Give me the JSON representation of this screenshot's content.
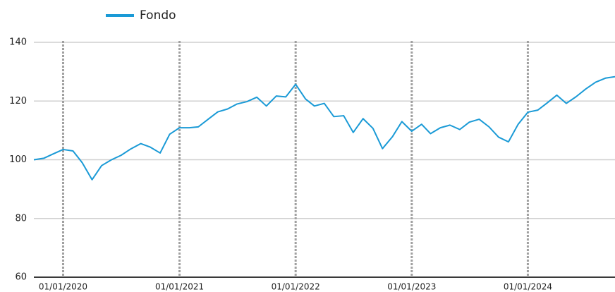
{
  "chart_data": {
    "type": "line",
    "x": [
      "2019-10-01",
      "2019-11-01",
      "2019-12-01",
      "2020-01-01",
      "2020-02-01",
      "2020-03-01",
      "2020-04-01",
      "2020-05-01",
      "2020-06-01",
      "2020-07-01",
      "2020-08-01",
      "2020-09-01",
      "2020-10-01",
      "2020-11-01",
      "2020-12-01",
      "2021-01-01",
      "2021-02-01",
      "2021-03-01",
      "2021-04-01",
      "2021-05-01",
      "2021-06-01",
      "2021-07-01",
      "2021-08-01",
      "2021-09-01",
      "2021-10-01",
      "2021-11-01",
      "2021-12-01",
      "2022-01-01",
      "2022-02-01",
      "2022-03-01",
      "2022-04-01",
      "2022-05-01",
      "2022-06-01",
      "2022-07-01",
      "2022-08-01",
      "2022-09-01",
      "2022-10-01",
      "2022-11-01",
      "2022-12-01",
      "2023-01-01",
      "2023-02-01",
      "2023-03-01",
      "2023-04-01",
      "2023-05-01",
      "2023-06-01",
      "2023-07-01",
      "2023-08-01",
      "2023-09-01",
      "2023-10-01",
      "2023-11-01",
      "2023-12-01",
      "2024-01-01",
      "2024-02-01",
      "2024-03-01",
      "2024-04-01",
      "2024-05-01",
      "2024-06-01",
      "2024-07-01",
      "2024-08-01",
      "2024-09-01",
      "2024-10-01"
    ],
    "series": [
      {
        "name": "Fondo",
        "color": "#1a9ad6",
        "values": [
          100.0,
          100.5,
          102,
          103.5,
          103,
          99,
          93.2,
          98,
          100,
          101.5,
          103.7,
          105.5,
          104.3,
          102.3,
          108.7,
          110.9,
          110.9,
          111.2,
          113.8,
          116.3,
          117.3,
          119,
          119.8,
          121.3,
          118.3,
          121.7,
          121.4,
          125.7,
          120.7,
          118.3,
          119.2,
          114.7,
          115,
          109.3,
          114,
          110.7,
          103.8,
          107.8,
          113,
          109.7,
          112.1,
          108.9,
          110.9,
          111.8,
          110.3,
          112.8,
          113.8,
          111.2,
          107.7,
          106.1,
          112,
          116.2,
          116.9,
          119.3,
          122,
          119.2,
          121.5,
          124.1,
          126.4,
          127.8,
          128.3
        ]
      }
    ],
    "xlim": [
      "2019-10-01",
      "2024-10-01"
    ],
    "xticks": [
      {
        "value": "2020-01-01",
        "label": "01/01/2020"
      },
      {
        "value": "2021-01-01",
        "label": "01/01/2021"
      },
      {
        "value": "2022-01-01",
        "label": "01/01/2022"
      },
      {
        "value": "2023-01-01",
        "label": "01/01/2023"
      },
      {
        "value": "2024-01-01",
        "label": "01/01/2024"
      }
    ],
    "ylim": [
      60,
      140
    ],
    "yticks": [
      60,
      80,
      100,
      120,
      140
    ],
    "grid": true,
    "legend": "top"
  }
}
